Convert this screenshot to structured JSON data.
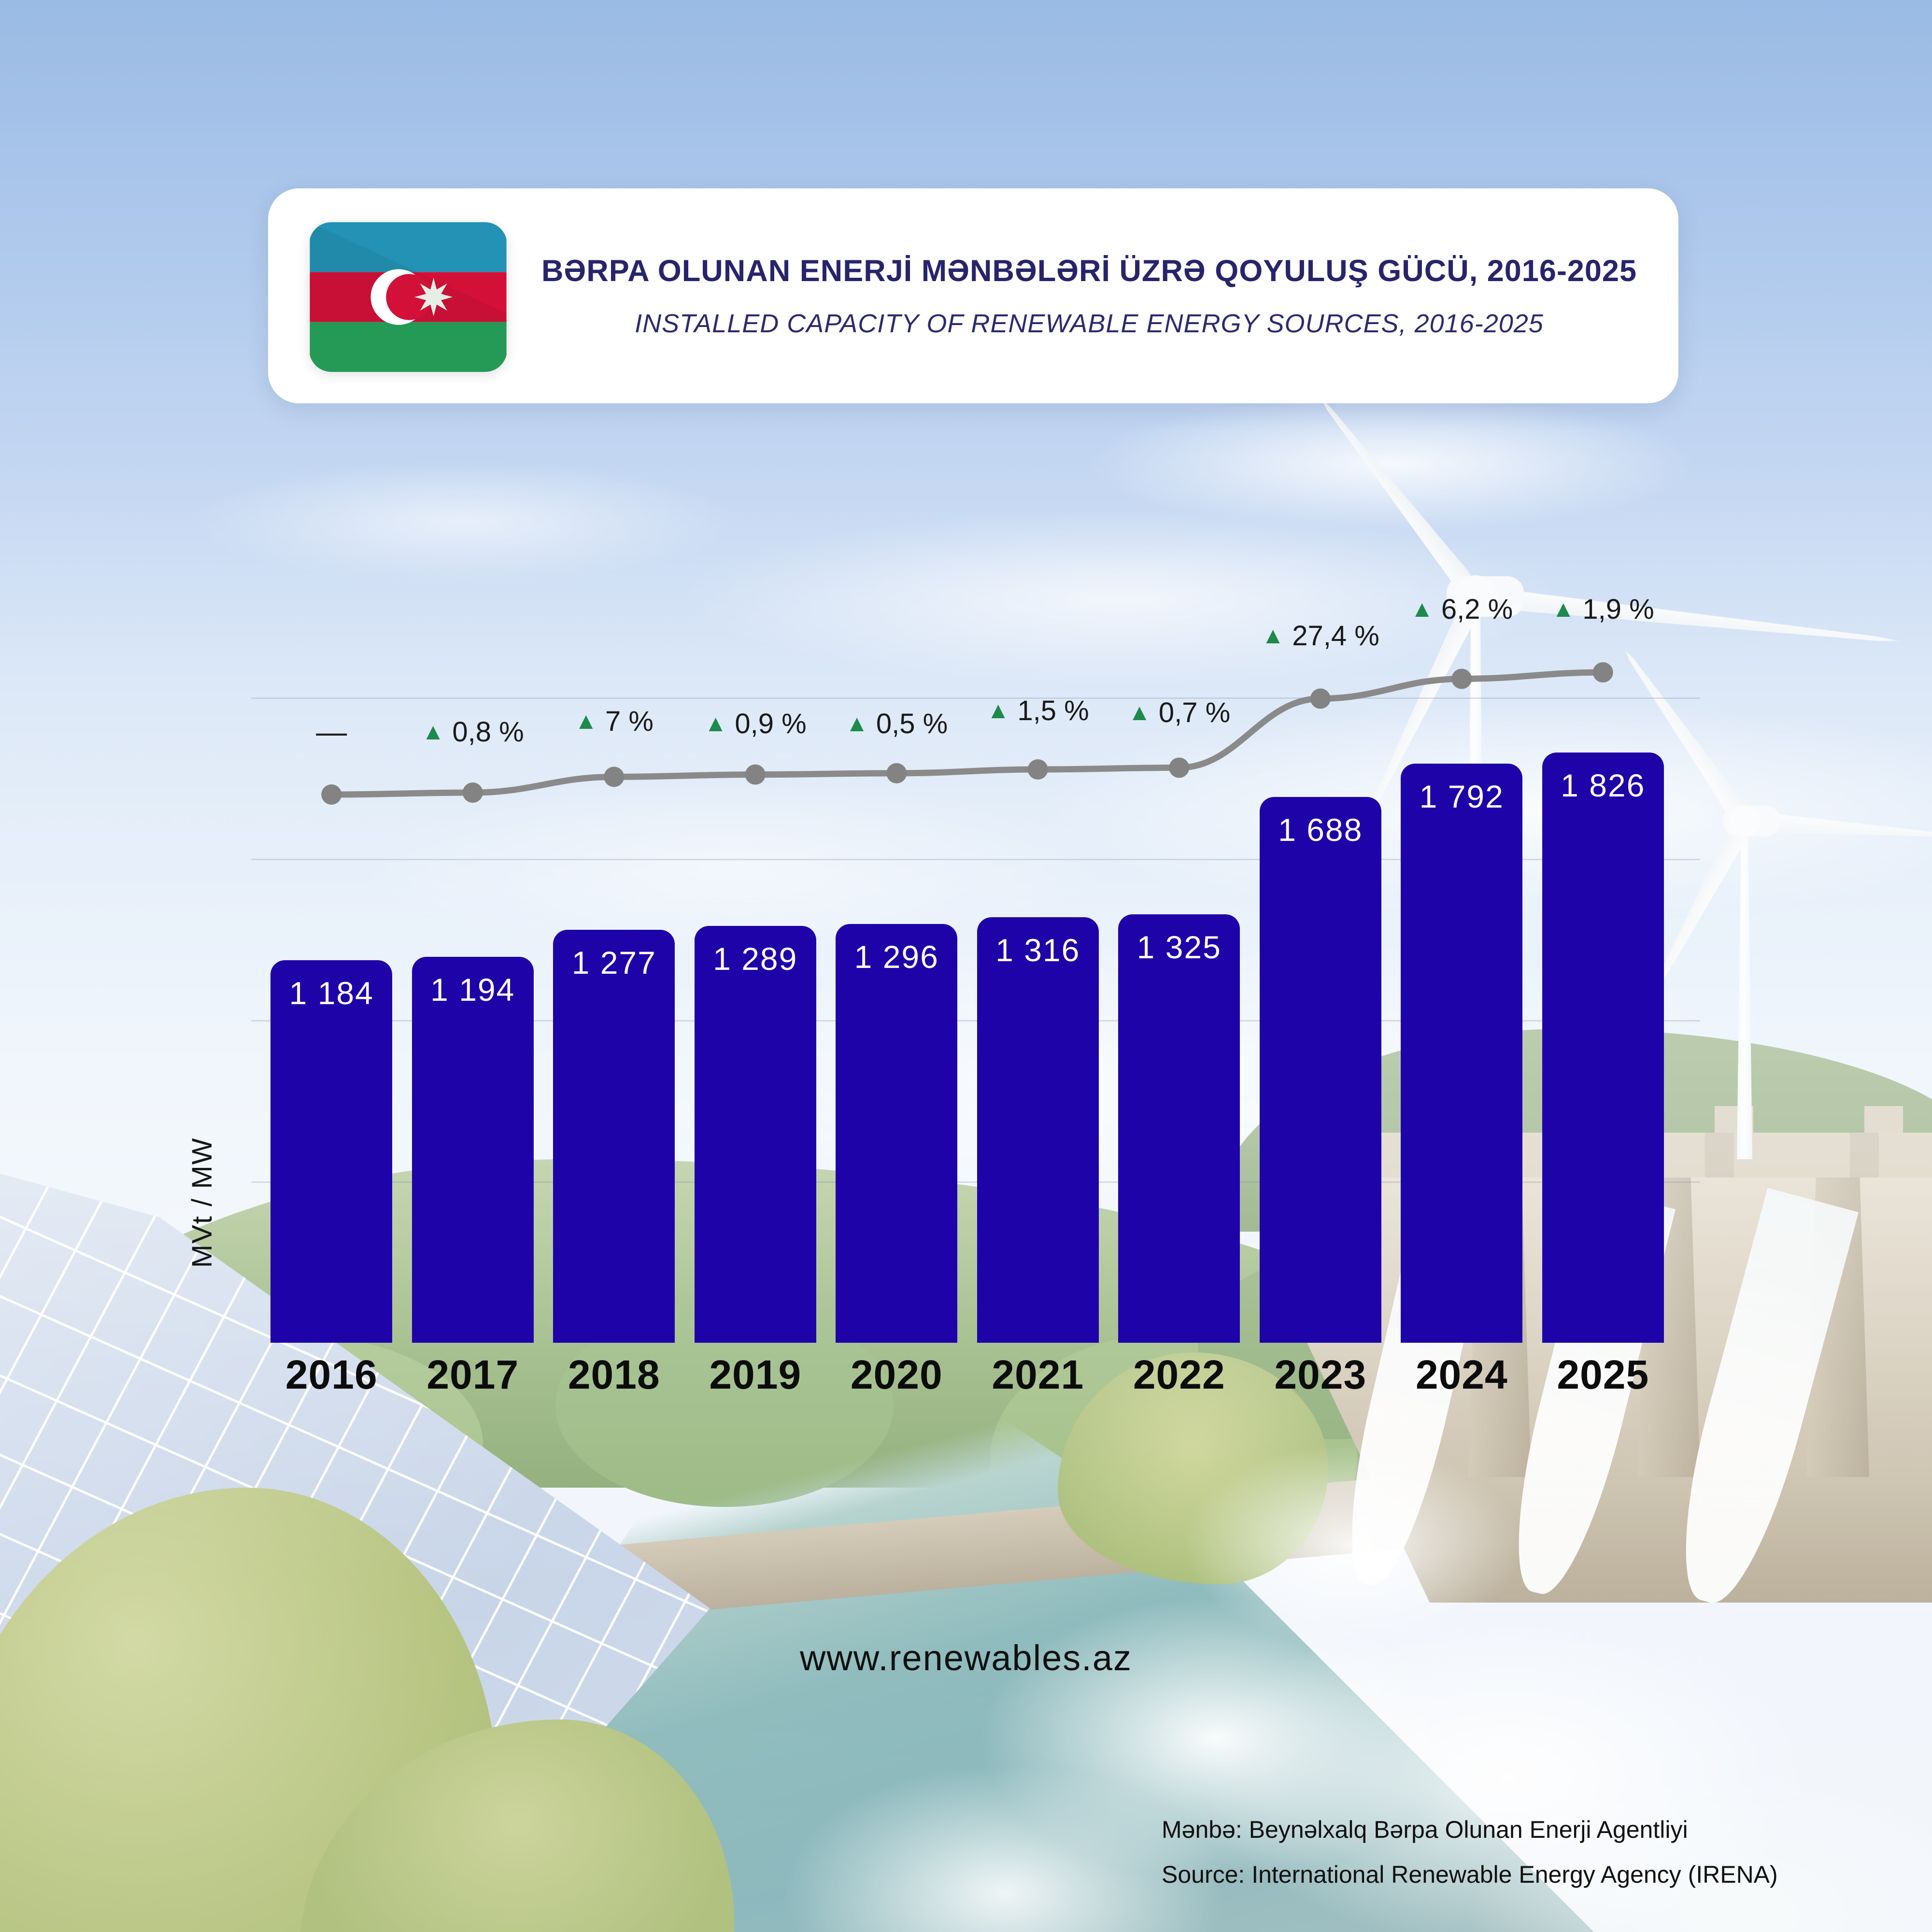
{
  "header": {
    "flag": "azerbaijan-flag",
    "title_az": "BƏRPA OLUNAN ENERJİ MƏNBƏLƏRİ ÜZRƏ QOYULUŞ GÜCÜ, 2016-2025",
    "title_en": "INSTALLED CAPACITY OF RENEWABLE ENERGY SOURCES, 2016-2025"
  },
  "chart_data": {
    "type": "bar",
    "title": "Installed capacity of renewable energy sources, 2016-2025",
    "categories": [
      "2016",
      "2017",
      "2018",
      "2019",
      "2020",
      "2021",
      "2022",
      "2023",
      "2024",
      "2025"
    ],
    "values": [
      1184,
      1194,
      1277,
      1289,
      1296,
      1316,
      1325,
      1688,
      1792,
      1826
    ],
    "value_labels": [
      "1 184",
      "1 194",
      "1 277",
      "1 289",
      "1 296",
      "1 316",
      "1 325",
      "1 688",
      "1 792",
      "1 826"
    ],
    "growth_labels": [
      "—",
      "0,8 %",
      "7 %",
      "0,9 %",
      "0,5 %",
      "1,5 %",
      "0,7 %",
      "27,4 %",
      "6,2 %",
      "1,9 %"
    ],
    "growth_marker": "▲",
    "trend_line": "gray line with dots following the same capacity values",
    "ylabel": "MVt / MW",
    "ylim": [
      0,
      2000
    ],
    "grid": "faint horizontal lines",
    "legend": "none",
    "bar_color": "#1e04a8",
    "bar_value_color": "#ffffff",
    "growth_color": "#1e8a4c",
    "line_color": "#8a8a8a",
    "title_color": "#28246b"
  },
  "footer": {
    "website": "www.renewables.az",
    "source_az": "Mənbə: Beynəlxalq Bərpa Olunan Enerji Agentliyi",
    "source_en": "Source: International Renewable Energy Agency (IRENA)"
  }
}
